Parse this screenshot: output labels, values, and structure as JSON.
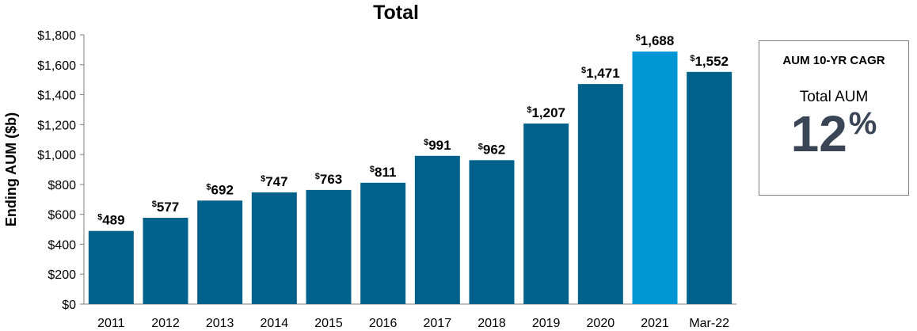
{
  "chart_data": {
    "type": "bar",
    "title": "Total",
    "ylabel": "Ending AUM ($b)",
    "xlabel": "",
    "categories": [
      "2011",
      "2012",
      "2013",
      "2014",
      "2015",
      "2016",
      "2017",
      "2018",
      "2019",
      "2020",
      "2021",
      "Mar-22"
    ],
    "values": [
      489,
      577,
      692,
      747,
      763,
      811,
      991,
      962,
      1207,
      1471,
      1688,
      1552
    ],
    "value_labels": [
      "489",
      "577",
      "692",
      "747",
      "763",
      "811",
      "991",
      "962",
      "1,207",
      "1,471",
      "1,688",
      "1,552"
    ],
    "value_label_prefix": "$",
    "ylim": [
      0,
      1800
    ],
    "yticks": [
      0,
      200,
      400,
      600,
      800,
      1000,
      1200,
      1400,
      1600,
      1800
    ],
    "ytick_labels": [
      "$0",
      "$200",
      "$400",
      "$600",
      "$800",
      "$1,000",
      "$1,200",
      "$1,400",
      "$1,600",
      "$1,800"
    ],
    "grid": false,
    "bar_color": "#00628b",
    "highlight_index": 10,
    "highlight_color": "#0096d6"
  },
  "callout": {
    "heading": "AUM 10-YR CAGR",
    "subheading": "Total AUM",
    "value": "12",
    "unit": "%",
    "value_color": "#3a4655"
  }
}
